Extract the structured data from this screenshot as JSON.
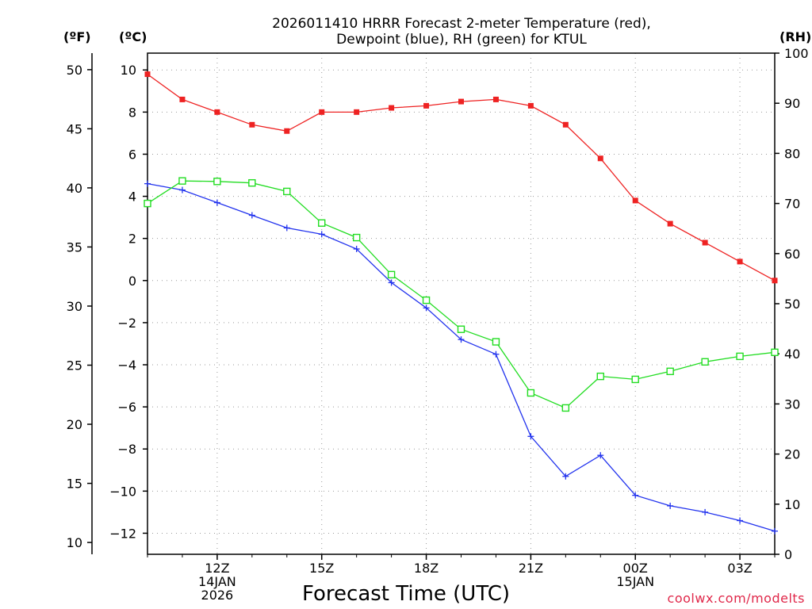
{
  "chart_data": {
    "type": "line",
    "title": [
      "2026011410 HRRR Forecast 2-meter Temperature (red),",
      "Dewpoint (blue), RH (green) for KTUL"
    ],
    "xlabel": "Forecast Time (UTC)",
    "credit": "coolwx.com/modelts",
    "units": {
      "fahrenheit": "(ºF)",
      "celsius": "(ºC)",
      "rh": "(RH)"
    },
    "x_hours": [
      10,
      11,
      12,
      13,
      14,
      15,
      16,
      17,
      18,
      19,
      20,
      21,
      22,
      23,
      24,
      25,
      26,
      27,
      28
    ],
    "xlim": [
      10,
      28
    ],
    "x_ticks": [
      {
        "hour": 12,
        "lines": [
          "12Z",
          "14JAN",
          "2026"
        ]
      },
      {
        "hour": 15,
        "lines": [
          "15Z"
        ]
      },
      {
        "hour": 18,
        "lines": [
          "18Z"
        ]
      },
      {
        "hour": 21,
        "lines": [
          "21Z"
        ]
      },
      {
        "hour": 24,
        "lines": [
          "00Z",
          "15JAN"
        ]
      },
      {
        "hour": 27,
        "lines": [
          "03Z"
        ]
      }
    ],
    "y_celsius": {
      "ylim": [
        -13,
        10.8
      ],
      "ticks": [
        10,
        8,
        6,
        4,
        2,
        0,
        -2,
        -4,
        -6,
        -8,
        -10,
        -12
      ]
    },
    "y_fahrenheit": {
      "ylim": [
        9,
        51.4
      ],
      "ticks": [
        50,
        45,
        40,
        35,
        30,
        25,
        20,
        15,
        10
      ]
    },
    "y_rh": {
      "ylim": [
        0,
        100
      ],
      "ticks": [
        100,
        90,
        80,
        70,
        60,
        50,
        40,
        30,
        20,
        10,
        0
      ]
    },
    "series": [
      {
        "name": "Temperature",
        "color": "#ee2222",
        "axis": "celsius",
        "marker": "filled-square",
        "values": [
          9.8,
          8.6,
          8.0,
          7.4,
          7.1,
          8.0,
          8.0,
          8.2,
          8.3,
          8.5,
          8.6,
          8.3,
          7.4,
          5.8,
          3.8,
          2.7,
          1.8,
          0.9,
          0.0
        ]
      },
      {
        "name": "Dewpoint",
        "color": "#2233ee",
        "axis": "celsius",
        "marker": "plus",
        "values": [
          4.6,
          4.3,
          3.7,
          3.1,
          2.5,
          2.2,
          1.5,
          -0.1,
          -1.3,
          -2.8,
          -3.5,
          -7.4,
          -9.3,
          -8.3,
          -10.2,
          -10.7,
          -11.0,
          -11.4,
          -11.9
        ]
      },
      {
        "name": "RH",
        "color": "#22dd22",
        "axis": "rh",
        "marker": "open-square",
        "values": [
          70,
          74.5,
          74.4,
          74.1,
          72.4,
          66.1,
          63.2,
          55.8,
          50.7,
          44.9,
          42.4,
          32.2,
          29.2,
          35.5,
          34.9,
          36.5,
          38.4,
          39.5,
          40.3
        ]
      }
    ]
  }
}
